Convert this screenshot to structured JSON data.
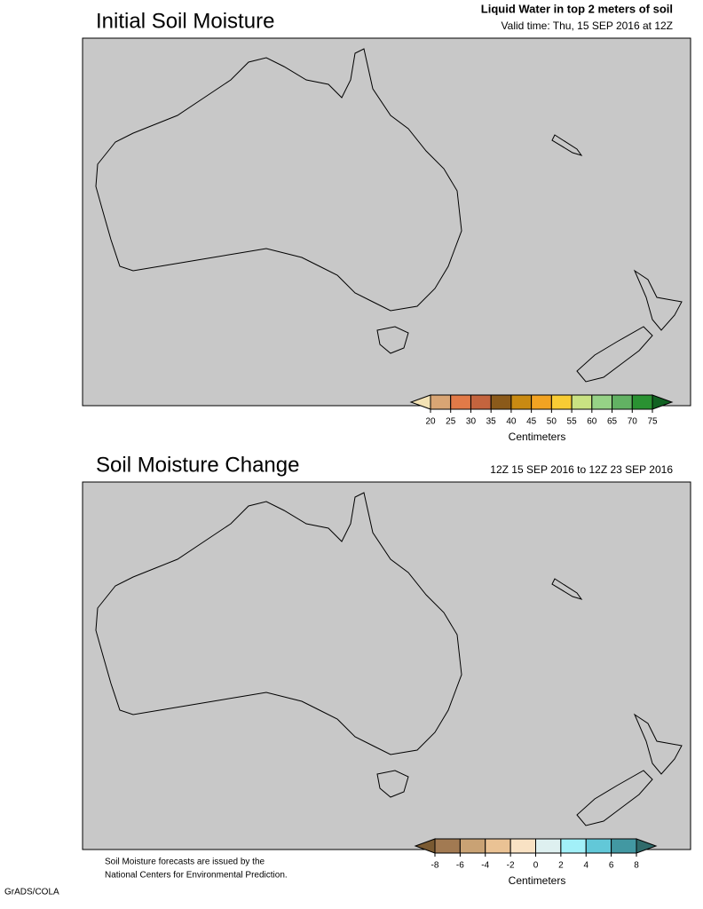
{
  "panels": [
    {
      "title": "Initial Soil Moisture",
      "subtitle": "Liquid Water in top 2 meters of soil",
      "valid_time": "Valid time: Thu, 15 SEP 2016 at 12Z",
      "colorbar": {
        "ticks": [
          20,
          25,
          30,
          35,
          40,
          45,
          50,
          55,
          60,
          65,
          70,
          75
        ],
        "colors": [
          "#f3e2b4",
          "#d9a574",
          "#e27a48",
          "#c4643e",
          "#8b5a1a",
          "#c98a12",
          "#f2a322",
          "#f8cc34",
          "#c9e282",
          "#96d286",
          "#62b263",
          "#2a9232",
          "#116222"
        ],
        "label": "Centimeters"
      }
    },
    {
      "title": "Soil Moisture Change",
      "valid_time": "12Z 15 SEP 2016 to 12Z 23 SEP 2016",
      "colorbar": {
        "ticks": [
          -8,
          -6,
          -4,
          -2,
          0,
          2,
          4,
          6,
          8
        ],
        "colors": [
          "#7a5a32",
          "#a27a52",
          "#c9a274",
          "#eac294",
          "#f9e2c4",
          "#def0f0",
          "#a2f0f8",
          "#62c8d8",
          "#4298a2",
          "#2f6a6a"
        ],
        "label": "Centimeters"
      }
    }
  ],
  "footnote": [
    "Soil Moisture forecasts are issued by the",
    "National Centers for Environmental Prediction."
  ],
  "credit": "GrADS/COLA"
}
